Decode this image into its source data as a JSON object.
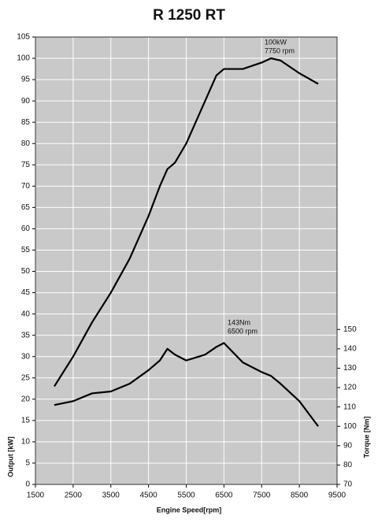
{
  "chart_data": {
    "type": "line",
    "title": "R 1250 RT",
    "x_label": "Engine Speed[rpm]",
    "y_label": "Output [kW]",
    "y2_label": "Torque [Nm]",
    "x": [
      2000,
      2500,
      3000,
      3500,
      4000,
      4500,
      4800,
      5000,
      5200,
      5500,
      6000,
      6300,
      6500,
      7000,
      7500,
      7750,
      8000,
      8500,
      9000
    ],
    "series": [
      {
        "name": "Output",
        "color": "#000000",
        "axis": "y",
        "values": [
          23,
          30,
          38,
          45,
          53,
          63,
          70,
          74,
          75.5,
          80,
          90,
          96,
          97.5,
          97.5,
          99,
          100,
          99.5,
          96.5,
          94
        ]
      },
      {
        "name": "Torque",
        "color": "#000000",
        "axis": "y2",
        "values": [
          111,
          113,
          117,
          118,
          122,
          129,
          134,
          140,
          137,
          134,
          137,
          141,
          143,
          133,
          128,
          126,
          122,
          113,
          100
        ]
      }
    ],
    "annotations": [
      [
        "100kW",
        "7750 rpm"
      ],
      [
        "143Nm",
        "6500 rpm"
      ]
    ],
    "xlim": [
      1500,
      9500
    ],
    "xticks": [
      1500,
      2500,
      3500,
      4500,
      5500,
      6500,
      7500,
      8500,
      9500
    ],
    "ylim": [
      0,
      105
    ],
    "yticks": [
      0,
      5,
      10,
      15,
      20,
      25,
      30,
      35,
      40,
      45,
      50,
      55,
      60,
      65,
      70,
      75,
      80,
      85,
      90,
      95,
      100,
      105
    ],
    "y2lim": [
      70,
      301
    ],
    "y2ticks": [
      70,
      80,
      90,
      100,
      110,
      120,
      130,
      140,
      150
    ],
    "grid": true,
    "background": "#c9c9c9"
  }
}
